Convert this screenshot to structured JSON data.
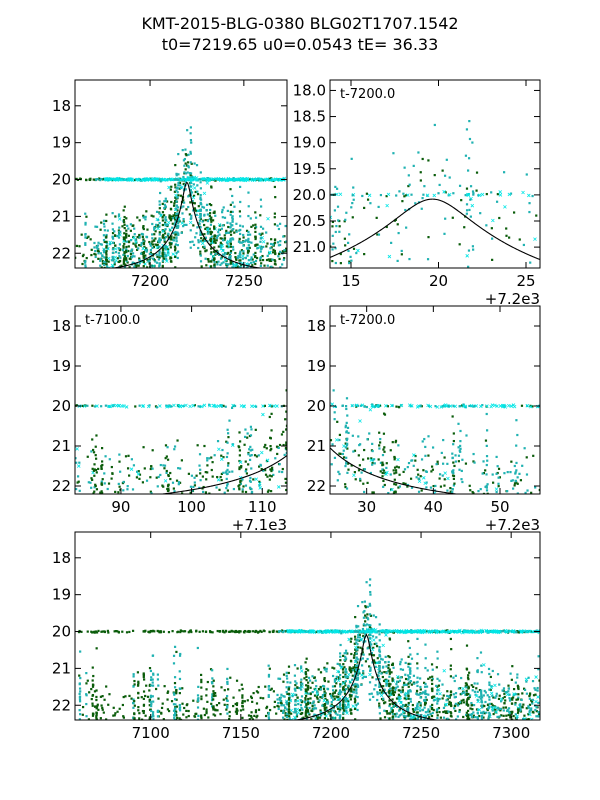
{
  "figure": {
    "title_line1": "KMT-2015-BLG-0380 BLG02T1707.1542",
    "title_line2": "t0=7219.65 u0=0.0543 tE=  36.33"
  },
  "colors": {
    "kmt_c": "#0a5c0a",
    "kmt_s": "#20b2b2",
    "kmt_a": "#00e6e6",
    "model": "#000000"
  },
  "chart_data": [
    {
      "type": "scatter",
      "panel": "top-left",
      "xlim": [
        7160,
        7273
      ],
      "ylim": [
        22.4,
        17.3
      ],
      "xticks": [
        7200,
        7250
      ],
      "xtick_labels": [
        "7200",
        "7250"
      ],
      "yticks": [
        18,
        19,
        20,
        21,
        22
      ],
      "ytick_labels": [
        "18",
        "19",
        "20",
        "21",
        "22"
      ],
      "offset_label": "",
      "inset_label": "",
      "series": [
        {
          "marker": "dot",
          "color": "#0a5c0a"
        },
        {
          "marker": "dot",
          "color": "#20b2b2"
        },
        {
          "marker": "cross",
          "color": "#00e6e6"
        },
        {
          "marker": "line",
          "color": "#000000"
        }
      ]
    },
    {
      "type": "scatter",
      "panel": "top-right",
      "xlim": [
        13.8,
        25.8
      ],
      "ylim": [
        21.4,
        17.8
      ],
      "xticks": [
        15,
        20,
        25
      ],
      "xtick_labels": [
        "15",
        "20",
        "25"
      ],
      "yticks": [
        18.0,
        18.5,
        19.0,
        19.5,
        20.0,
        20.5,
        21.0
      ],
      "ytick_labels": [
        "18.0",
        "18.5",
        "19.0",
        "19.5",
        "20.0",
        "20.5",
        "21.0"
      ],
      "offset_label": "+7.2e3",
      "inset_label": "t-7200.0",
      "series": [
        {
          "marker": "dot",
          "color": "#0a5c0a"
        },
        {
          "marker": "dot",
          "color": "#20b2b2"
        },
        {
          "marker": "cross",
          "color": "#00e6e6"
        },
        {
          "marker": "line",
          "color": "#000000"
        }
      ]
    },
    {
      "type": "scatter",
      "panel": "middle-left",
      "xlim": [
        83.5,
        113.5
      ],
      "ylim": [
        22.2,
        17.5
      ],
      "xticks": [
        90,
        100,
        110
      ],
      "xtick_labels": [
        "90",
        "100",
        "110"
      ],
      "yticks": [
        18,
        19,
        20,
        21,
        22
      ],
      "ytick_labels": [
        "18",
        "19",
        "20",
        "21",
        "22"
      ],
      "offset_label": "+7.1e3",
      "inset_label": "t-7100.0",
      "series": [
        {
          "marker": "dot",
          "color": "#0a5c0a"
        },
        {
          "marker": "dot",
          "color": "#20b2b2"
        },
        {
          "marker": "cross",
          "color": "#00e6e6"
        },
        {
          "marker": "line",
          "color": "#000000"
        }
      ]
    },
    {
      "type": "scatter",
      "panel": "middle-right",
      "xlim": [
        24.5,
        56
      ],
      "ylim": [
        22.2,
        17.5
      ],
      "xticks": [
        30,
        40,
        50
      ],
      "xtick_labels": [
        "30",
        "40",
        "50"
      ],
      "yticks": [
        18,
        19,
        20,
        21,
        22
      ],
      "ytick_labels": [
        "18",
        "19",
        "20",
        "21",
        "22"
      ],
      "offset_label": "+7.2e3",
      "inset_label": "t-7200.0",
      "series": [
        {
          "marker": "dot",
          "color": "#0a5c0a"
        },
        {
          "marker": "dot",
          "color": "#20b2b2"
        },
        {
          "marker": "cross",
          "color": "#00e6e6"
        },
        {
          "marker": "line",
          "color": "#000000"
        }
      ]
    },
    {
      "type": "scatter",
      "panel": "bottom",
      "xlim": [
        7058,
        7316
      ],
      "ylim": [
        22.4,
        17.3
      ],
      "xticks": [
        7100,
        7150,
        7200,
        7250,
        7300
      ],
      "xtick_labels": [
        "7100",
        "7150",
        "7200",
        "7250",
        "7300"
      ],
      "yticks": [
        18,
        19,
        20,
        21,
        22
      ],
      "ytick_labels": [
        "18",
        "19",
        "20",
        "21",
        "22"
      ],
      "offset_label": "",
      "inset_label": "",
      "series": [
        {
          "marker": "dot",
          "color": "#0a5c0a"
        },
        {
          "marker": "dot",
          "color": "#20b2b2"
        },
        {
          "marker": "cross",
          "color": "#00e6e6"
        },
        {
          "marker": "line",
          "color": "#000000"
        }
      ]
    }
  ]
}
